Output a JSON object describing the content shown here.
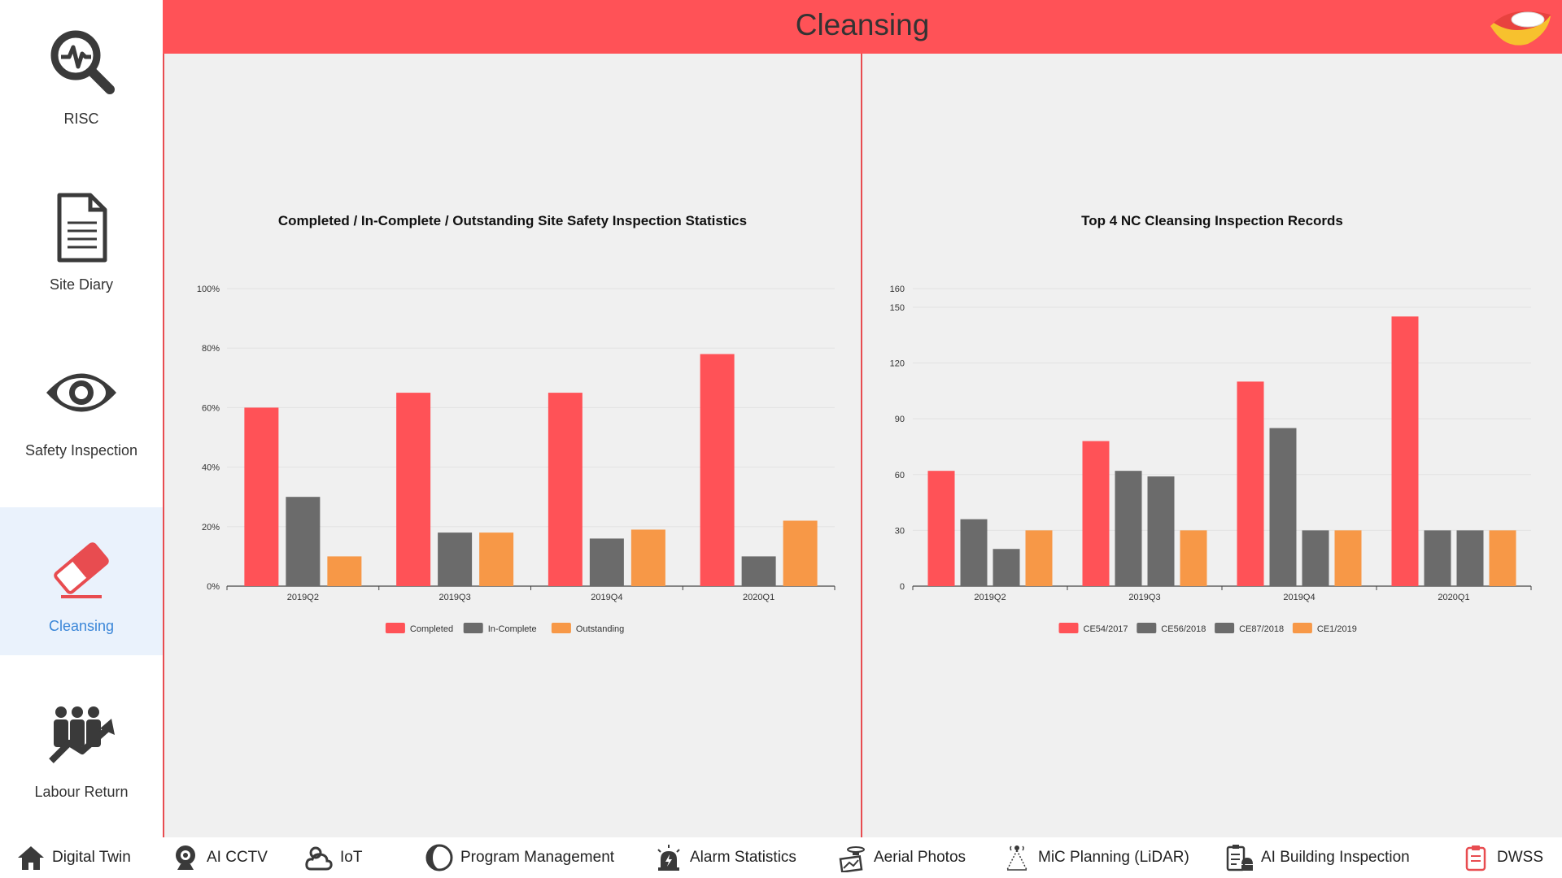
{
  "header": {
    "title": "Cleansing"
  },
  "sidebar": {
    "items": [
      {
        "label": "RISC",
        "icon": "magnifier-heartbeat-icon"
      },
      {
        "label": "Site Diary",
        "icon": "document-icon"
      },
      {
        "label": "Safety Inspection",
        "icon": "eye-icon"
      },
      {
        "label": "Cleansing",
        "icon": "eraser-icon",
        "active": true
      },
      {
        "label": "Labour Return",
        "icon": "workers-chart-icon"
      }
    ]
  },
  "bottom_nav": {
    "items": [
      {
        "label": "Digital Twin",
        "icon": "home-icon"
      },
      {
        "label": "AI CCTV",
        "icon": "webcam-icon"
      },
      {
        "label": "IoT",
        "icon": "cloud-sun-icon"
      },
      {
        "label": "Program Management",
        "icon": "pie-icon"
      },
      {
        "label": "Alarm Statistics",
        "icon": "siren-icon"
      },
      {
        "label": "Aerial Photos",
        "icon": "drone-icon"
      },
      {
        "label": "MiC Planning (LiDAR)",
        "icon": "lidar-icon"
      },
      {
        "label": "AI Building Inspection",
        "icon": "clipboard-worker-icon"
      },
      {
        "label": "DWSS",
        "icon": "clipboard-icon"
      }
    ]
  },
  "colors": {
    "red": "#ff5257",
    "gray": "#6b6b6b",
    "orange": "#f79847",
    "active_blue": "#3a86d8"
  },
  "chart_data": [
    {
      "type": "bar",
      "title": "Completed / In-Complete / Outstanding Site Safety Inspection Statistics",
      "categories": [
        "2019Q2",
        "2019Q3",
        "2019Q4",
        "2020Q1"
      ],
      "series": [
        {
          "name": "Completed",
          "color": "#ff5257",
          "values": [
            60,
            65,
            65,
            78
          ]
        },
        {
          "name": "In-Complete",
          "color": "#6b6b6b",
          "values": [
            30,
            18,
            16,
            10
          ]
        },
        {
          "name": "Outstanding",
          "color": "#f79847",
          "values": [
            10,
            18,
            19,
            22
          ]
        }
      ],
      "yticks": [
        0,
        20,
        40,
        60,
        80,
        100
      ],
      "ytick_labels": [
        "0%",
        "20%",
        "40%",
        "60%",
        "80%",
        "100%"
      ],
      "ylim": [
        0,
        100
      ],
      "legend": "bottom"
    },
    {
      "type": "bar",
      "title": "Top 4 NC Cleansing Inspection Records",
      "categories": [
        "2019Q2",
        "2019Q3",
        "2019Q4",
        "2020Q1"
      ],
      "series": [
        {
          "name": "CE54/2017",
          "color": "#ff5257",
          "values": [
            62,
            78,
            110,
            145
          ]
        },
        {
          "name": "CE56/2018",
          "color": "#6b6b6b",
          "values": [
            36,
            62,
            85,
            30
          ]
        },
        {
          "name": "CE87/2018",
          "color": "#6b6b6b",
          "values": [
            20,
            59,
            30,
            30
          ]
        },
        {
          "name": "CE1/2019",
          "color": "#f79847",
          "values": [
            30,
            30,
            30,
            30
          ]
        }
      ],
      "yticks": [
        0,
        30,
        60,
        90,
        120,
        150,
        160
      ],
      "ytick_labels": [
        "0",
        "30",
        "60",
        "90",
        "120",
        "150",
        "160"
      ],
      "ylim": [
        0,
        160
      ],
      "legend": "bottom"
    }
  ]
}
